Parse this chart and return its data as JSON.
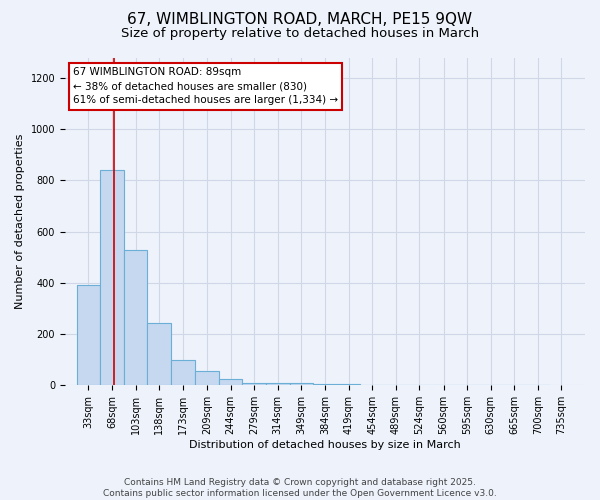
{
  "title": "67, WIMBLINGTON ROAD, MARCH, PE15 9QW",
  "subtitle": "Size of property relative to detached houses in March",
  "xlabel": "Distribution of detached houses by size in March",
  "ylabel": "Number of detached properties",
  "bar_edges": [
    33,
    68,
    103,
    138,
    173,
    209,
    244,
    279,
    314,
    349,
    384,
    419,
    454,
    489,
    524,
    560,
    595,
    630,
    665,
    700,
    735
  ],
  "bar_heights": [
    390,
    840,
    530,
    245,
    100,
    55,
    25,
    10,
    10,
    10,
    5,
    5,
    0,
    0,
    0,
    0,
    0,
    0,
    0,
    0
  ],
  "bar_color": "#c5d8f0",
  "bar_edge_color": "#6baed6",
  "property_size": 89,
  "red_line_color": "#cc0000",
  "annotation_line1": "67 WIMBLINGTON ROAD: 89sqm",
  "annotation_line2": "← 38% of detached houses are smaller (830)",
  "annotation_line3": "61% of semi-detached houses are larger (1,334) →",
  "annotation_box_color": "#ffffff",
  "annotation_box_edge_color": "#cc0000",
  "ylim": [
    0,
    1280
  ],
  "yticks": [
    0,
    200,
    400,
    600,
    800,
    1000,
    1200
  ],
  "footer_line1": "Contains HM Land Registry data © Crown copyright and database right 2025.",
  "footer_line2": "Contains public sector information licensed under the Open Government Licence v3.0.",
  "bg_color": "#edf2fb",
  "grid_color": "#d0d8e8",
  "title_fontsize": 11,
  "subtitle_fontsize": 9.5,
  "axis_fontsize": 8,
  "tick_fontsize": 7,
  "annot_fontsize": 7.5,
  "footer_fontsize": 6.5
}
